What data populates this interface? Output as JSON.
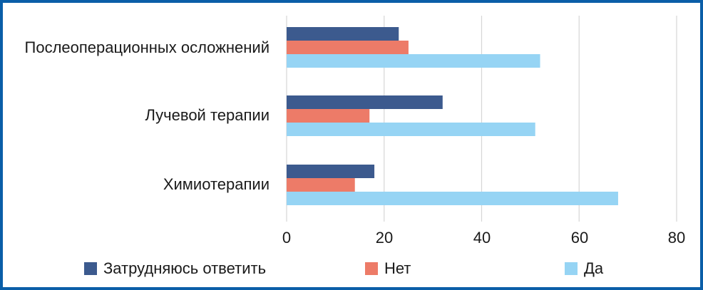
{
  "chart_data": {
    "type": "bar",
    "orientation": "horizontal",
    "categories": [
      "Послеоперационных осложнений",
      "Лучевой терапии",
      "Химиотерапии"
    ],
    "series": [
      {
        "name": "Затрудняюсь ответить",
        "color": "#3c5a8e",
        "values": [
          23,
          32,
          18
        ]
      },
      {
        "name": "Нет",
        "color": "#ed7b68",
        "values": [
          25,
          17,
          14
        ]
      },
      {
        "name": "Да",
        "color": "#96d4f4",
        "values": [
          52,
          51,
          68
        ]
      }
    ],
    "xlim": [
      0,
      80
    ],
    "xticks": [
      "0",
      "20",
      "40",
      "60",
      "80"
    ],
    "grid": true,
    "legend": "bottom"
  }
}
